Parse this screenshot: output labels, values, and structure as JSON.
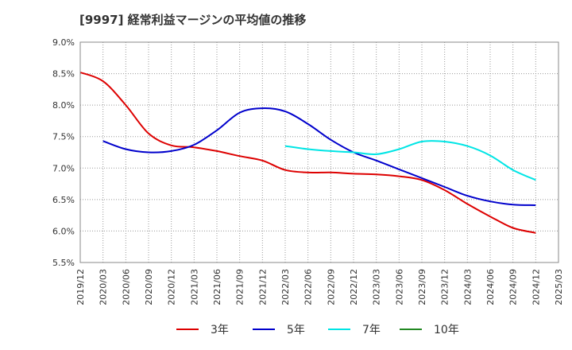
{
  "chart_data": {
    "type": "line",
    "title": "[9997]  経常利益マージンの平均値の推移",
    "xlabel": "",
    "ylabel": "",
    "ylim": [
      5.5,
      9.0
    ],
    "yticks": [
      "5.5%",
      "6.0%",
      "6.5%",
      "7.0%",
      "7.5%",
      "8.0%",
      "8.5%",
      "9.0%"
    ],
    "xticks": [
      "2019/12",
      "2020/03",
      "2020/06",
      "2020/09",
      "2020/12",
      "2021/03",
      "2021/06",
      "2021/09",
      "2021/12",
      "2022/03",
      "2022/06",
      "2022/09",
      "2022/12",
      "2023/03",
      "2023/06",
      "2023/09",
      "2023/12",
      "2024/03",
      "2024/06",
      "2024/09",
      "2024/12",
      "2025/03"
    ],
    "grid": true,
    "legend_position": "bottom",
    "series": [
      {
        "name": "3年",
        "color": "#dd0000",
        "x": [
          "2019/12",
          "2020/03",
          "2020/06",
          "2020/09",
          "2020/12",
          "2021/03",
          "2021/06",
          "2021/09",
          "2021/12",
          "2022/03",
          "2022/06",
          "2022/09",
          "2022/12",
          "2023/03",
          "2023/06",
          "2023/09",
          "2023/12",
          "2024/03",
          "2024/06",
          "2024/09",
          "2024/12"
        ],
        "values": [
          8.52,
          8.38,
          8.0,
          7.55,
          7.36,
          7.33,
          7.27,
          7.19,
          7.12,
          6.97,
          6.93,
          6.93,
          6.91,
          6.9,
          6.87,
          6.81,
          6.65,
          6.43,
          6.23,
          6.05,
          5.97
        ]
      },
      {
        "name": "5年",
        "color": "#0000cc",
        "x": [
          "2020/03",
          "2020/06",
          "2020/09",
          "2020/12",
          "2021/03",
          "2021/06",
          "2021/09",
          "2021/12",
          "2022/03",
          "2022/06",
          "2022/09",
          "2022/12",
          "2023/03",
          "2023/06",
          "2023/09",
          "2023/12",
          "2024/03",
          "2024/06",
          "2024/09",
          "2024/12"
        ],
        "values": [
          7.43,
          7.3,
          7.25,
          7.27,
          7.37,
          7.6,
          7.88,
          7.95,
          7.9,
          7.7,
          7.45,
          7.25,
          7.12,
          6.98,
          6.84,
          6.7,
          6.56,
          6.47,
          6.42,
          6.41
        ]
      },
      {
        "name": "7年",
        "color": "#00e5e5",
        "x": [
          "2022/03",
          "2022/06",
          "2022/09",
          "2022/12",
          "2023/03",
          "2023/06",
          "2023/09",
          "2023/12",
          "2024/03",
          "2024/06",
          "2024/09",
          "2024/12"
        ],
        "values": [
          7.35,
          7.3,
          7.27,
          7.25,
          7.22,
          7.3,
          7.42,
          7.42,
          7.35,
          7.2,
          6.97,
          6.81
        ]
      },
      {
        "name": "10年",
        "color": "#228822",
        "x": [],
        "values": []
      }
    ]
  }
}
